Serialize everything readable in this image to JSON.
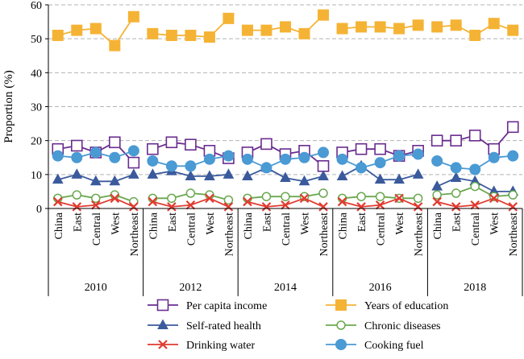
{
  "chart_data": {
    "type": "line",
    "ylabel": "Proportion (%)",
    "ylim": [
      0,
      60
    ],
    "yticks": [
      0,
      10,
      20,
      30,
      40,
      50,
      60
    ],
    "grid": "horizontal-dashed",
    "legend_position": "bottom",
    "years": [
      "2010",
      "2012",
      "2014",
      "2016",
      "2018"
    ],
    "regions": [
      "China",
      "East",
      "Central",
      "West",
      "Northeast"
    ],
    "series": [
      {
        "name": "Per capita income",
        "color": "#6a2c8f",
        "marker": "square-open",
        "values": [
          17.5,
          18.5,
          16.5,
          19.5,
          13.5,
          17.5,
          19.5,
          18.8,
          17.0,
          14.8,
          16.5,
          19.0,
          16.0,
          17.0,
          12.5,
          16.5,
          17.5,
          17.5,
          15.5,
          17.0,
          20.0,
          20.0,
          21.5,
          17.5,
          24.0
        ]
      },
      {
        "name": "Years of education",
        "color": "#f5b335",
        "marker": "square-filled",
        "values": [
          51.0,
          52.5,
          53.0,
          48.0,
          56.5,
          51.5,
          51.0,
          51.0,
          50.5,
          56.0,
          52.5,
          52.5,
          53.5,
          51.5,
          57.0,
          53.0,
          53.5,
          53.5,
          53.0,
          54.0,
          53.5,
          54.0,
          51.0,
          54.5,
          52.5
        ]
      },
      {
        "name": "Self-rated health",
        "color": "#3a5a9c",
        "marker": "triangle-filled",
        "values": [
          8.5,
          10.0,
          8.0,
          8.0,
          10.0,
          10.0,
          11.0,
          9.5,
          9.5,
          10.0,
          9.5,
          12.0,
          9.0,
          8.0,
          9.5,
          9.5,
          12.5,
          8.5,
          8.5,
          10.0,
          6.5,
          9.0,
          8.0,
          5.0,
          5.0
        ]
      },
      {
        "name": "Chronic diseases",
        "color": "#6aa84f",
        "marker": "circle-open",
        "values": [
          3.0,
          4.0,
          3.0,
          4.0,
          2.0,
          3.0,
          3.0,
          4.5,
          4.0,
          2.5,
          3.0,
          3.5,
          3.5,
          3.5,
          4.5,
          3.0,
          3.5,
          3.5,
          3.0,
          3.0,
          4.0,
          4.5,
          6.5,
          3.5,
          4.0
        ]
      },
      {
        "name": "Drinking water",
        "color": "#e03a2f",
        "marker": "x",
        "values": [
          2.0,
          0.5,
          1.0,
          3.0,
          0.5,
          2.0,
          0.5,
          1.0,
          3.0,
          0.5,
          2.0,
          0.5,
          1.0,
          3.0,
          0.5,
          2.0,
          0.5,
          1.0,
          3.0,
          0.5,
          2.0,
          0.5,
          1.0,
          3.0,
          0.5
        ]
      },
      {
        "name": "Cooking fuel",
        "color": "#4a9ad4",
        "marker": "circle-filled",
        "values": [
          15.5,
          15.0,
          16.5,
          15.0,
          17.0,
          14.0,
          12.5,
          12.5,
          14.5,
          15.5,
          14.5,
          12.0,
          14.5,
          15.0,
          16.5,
          14.5,
          12.0,
          13.5,
          15.5,
          16.0,
          14.0,
          12.0,
          11.5,
          15.0,
          15.5
        ]
      }
    ]
  }
}
